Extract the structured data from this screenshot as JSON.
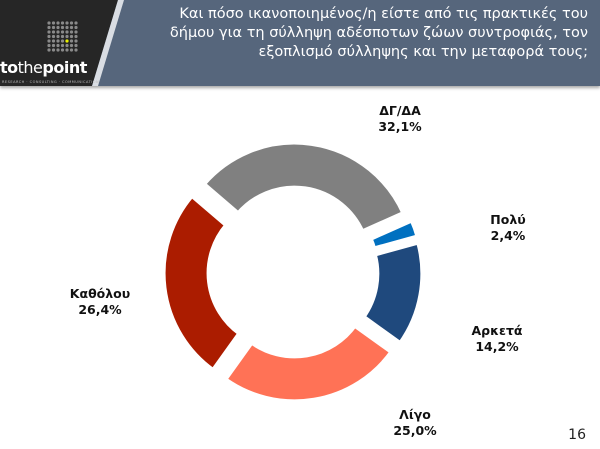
{
  "header": {
    "title": "Και πόσο ικανοποιημένος/η είστε από τις πρακτικές του δήμου για τη σύλληψη αδέσποτων ζώων συντροφιάς, τον εξοπλισμό σύλληψης και την μεταφορά τους;",
    "logo_text_a": "to",
    "logo_text_b": "the",
    "logo_text_c": "point",
    "logo_sub": "RESEARCH · CONSULTING · COMMUNICATION"
  },
  "page_number": "16",
  "chart_data": {
    "type": "pie",
    "donut": true,
    "title": "",
    "slices": [
      {
        "label": "Πολύ",
        "value": 2.4,
        "value_label": "2,4%",
        "color": "#0070c0"
      },
      {
        "label": "Αρκετά",
        "value": 14.2,
        "value_label": "14,2%",
        "color": "#1f497d"
      },
      {
        "label": "Λίγο",
        "value": 25.0,
        "value_label": "25,0%",
        "color": "#ff7256"
      },
      {
        "label": "Καθόλου",
        "value": 26.4,
        "value_label": "26,4%",
        "color": "#ab1c00"
      },
      {
        "label": "ΔΓ/ΔΑ",
        "value": 32.1,
        "value_label": "32,1%",
        "color": "#808080"
      }
    ],
    "start_angle_deg": 66
  }
}
